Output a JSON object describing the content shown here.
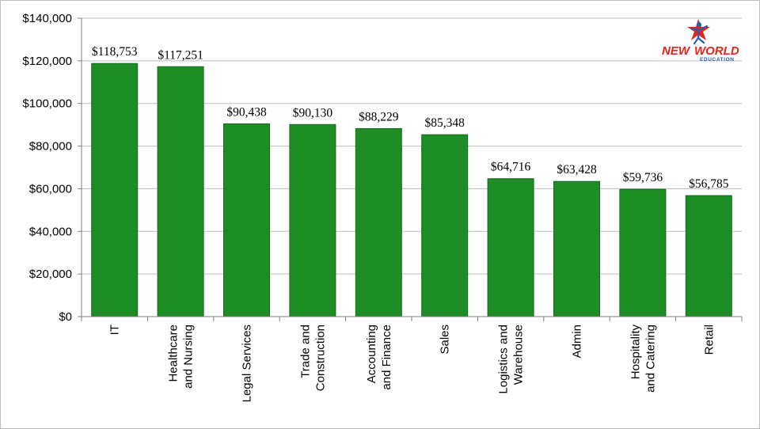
{
  "logo": {
    "text_new": "NEW",
    "text_world": "WORLD",
    "subtext": "EDUCATION"
  },
  "chart_data": {
    "type": "bar",
    "categories": [
      [
        "IT"
      ],
      [
        "Healthcare",
        "and Nursing"
      ],
      [
        "Legal Services"
      ],
      [
        "Trade and",
        "Construction"
      ],
      [
        "Accounting",
        "and Finance"
      ],
      [
        "Sales"
      ],
      [
        "Logistics and",
        "Warehouse"
      ],
      [
        "Admin"
      ],
      [
        "Hospitality",
        "and Catering"
      ],
      [
        "Retail"
      ]
    ],
    "values": [
      118753,
      117251,
      90438,
      90130,
      88229,
      85348,
      64716,
      63428,
      59736,
      56785
    ],
    "value_labels": [
      "$118,753",
      "$117,251",
      "$90,438",
      "$90,130",
      "$88,229",
      "$85,348",
      "$64,716",
      "$63,428",
      "$59,736",
      "$56,785"
    ],
    "ylim": [
      0,
      140000
    ],
    "yticks": [
      0,
      20000,
      40000,
      60000,
      80000,
      100000,
      120000,
      140000
    ],
    "ytick_labels": [
      "$0",
      "$20,000",
      "$40,000",
      "$60,000",
      "$80,000",
      "$100,000",
      "$120,000",
      "$140,000"
    ],
    "grid": true,
    "bar_color": "#1f8d25",
    "bar_edge_color": "#166b1b",
    "title": "",
    "xlabel": "",
    "ylabel": ""
  }
}
